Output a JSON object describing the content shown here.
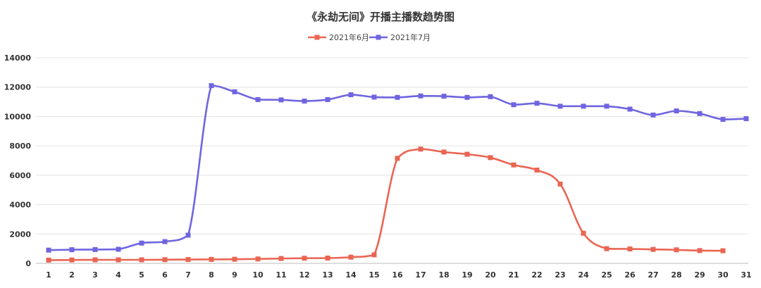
{
  "chart_data": {
    "type": "line",
    "title": "《永劫无间》开播主播数趋势图",
    "xlabel": "",
    "ylabel": "",
    "x": [
      "1",
      "2",
      "3",
      "4",
      "5",
      "6",
      "7",
      "8",
      "9",
      "10",
      "11",
      "12",
      "13",
      "14",
      "15",
      "16",
      "17",
      "18",
      "19",
      "20",
      "21",
      "22",
      "23",
      "24",
      "25",
      "26",
      "27",
      "28",
      "29",
      "30",
      "31"
    ],
    "ylim": [
      0,
      14000
    ],
    "yticks": [
      0,
      2000,
      4000,
      6000,
      8000,
      10000,
      12000,
      14000
    ],
    "grid": true,
    "legend_position": "top-center",
    "series": [
      {
        "name": "2021年6月",
        "color": "#ea6552",
        "values": [
          220,
          230,
          240,
          240,
          240,
          250,
          260,
          270,
          280,
          300,
          330,
          350,
          360,
          420,
          580,
          7150,
          7780,
          7580,
          7430,
          7200,
          6700,
          6350,
          5400,
          2050,
          1000,
          980,
          950,
          920,
          870,
          860,
          null
        ]
      },
      {
        "name": "2021年7月",
        "color": "#6f65e0",
        "values": [
          900,
          930,
          940,
          960,
          1380,
          1480,
          1920,
          12100,
          11680,
          11150,
          11130,
          11050,
          11150,
          11480,
          11320,
          11300,
          11400,
          11380,
          11300,
          11350,
          10800,
          10900,
          10700,
          10700,
          10700,
          10500,
          10100,
          10380,
          10200,
          9800,
          9850
        ]
      }
    ]
  }
}
